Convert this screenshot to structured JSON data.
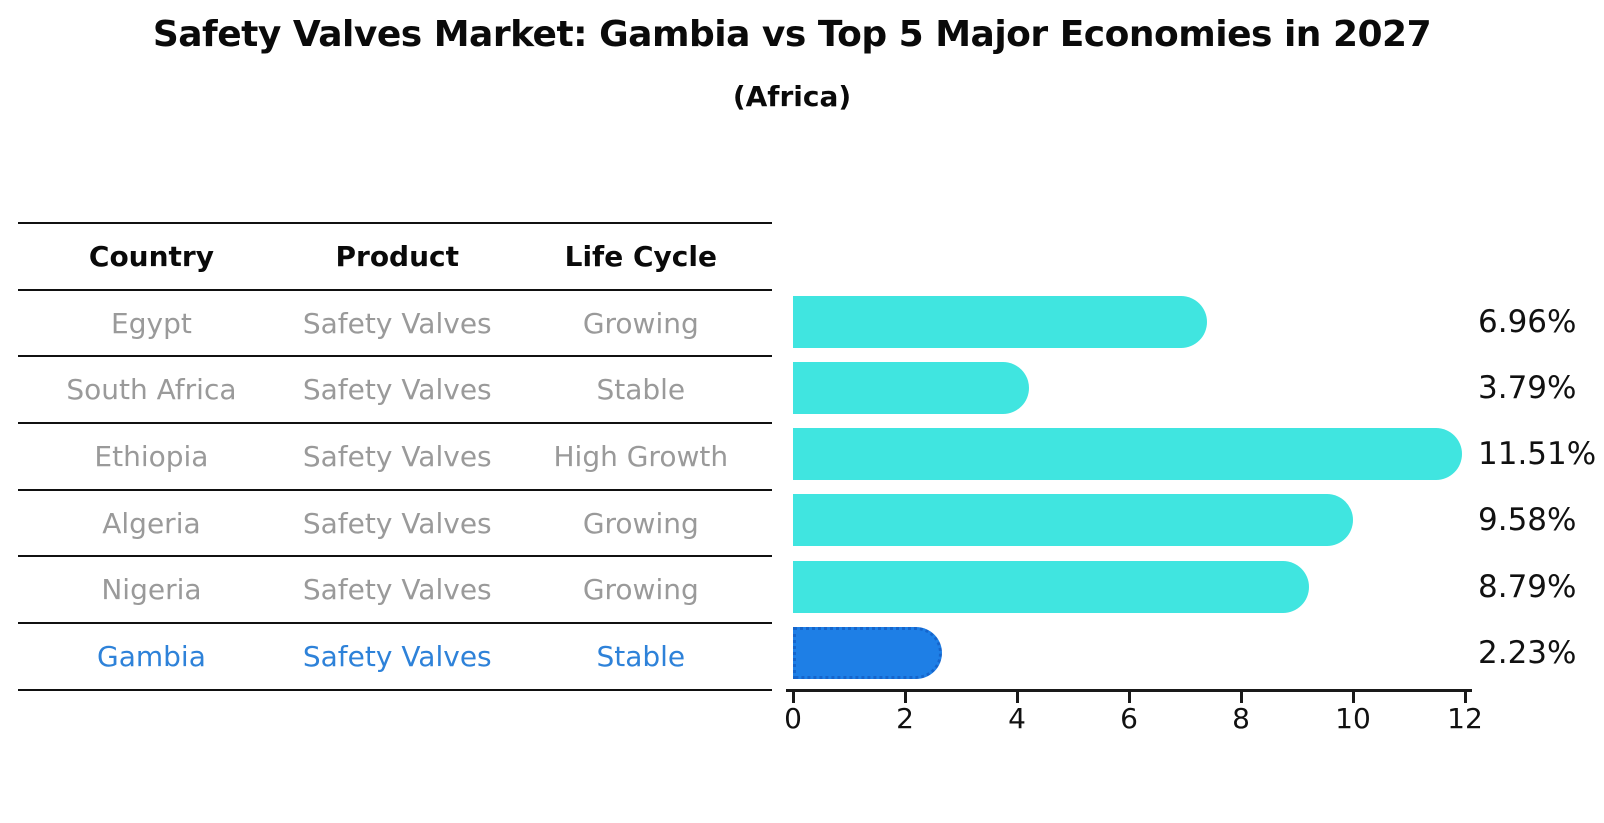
{
  "title": "Safety Valves Market: Gambia vs Top 5 Major Economies in 2027",
  "subtitle": "(Africa)",
  "table": {
    "headers": [
      "Country",
      "Product",
      "Life Cycle"
    ],
    "rows": [
      {
        "country": "Egypt",
        "product": "Safety Valves",
        "life_cycle": "Growing",
        "highlight": false
      },
      {
        "country": "South Africa",
        "product": "Safety Valves",
        "life_cycle": "Stable",
        "highlight": false
      },
      {
        "country": "Ethiopia",
        "product": "Safety Valves",
        "life_cycle": "High Growth",
        "highlight": false
      },
      {
        "country": "Algeria",
        "product": "Safety Valves",
        "life_cycle": "Growing",
        "highlight": false
      },
      {
        "country": "Nigeria",
        "product": "Safety Valves",
        "life_cycle": "Growing",
        "highlight": false
      },
      {
        "country": "Gambia",
        "product": "Safety Valves",
        "life_cycle": "Stable",
        "highlight": true
      }
    ]
  },
  "chart_data": {
    "type": "bar",
    "orientation": "horizontal",
    "title": "Safety Valves Market: Gambia vs Top 5 Major Economies in 2027 (Africa)",
    "categories": [
      "Egypt",
      "South Africa",
      "Ethiopia",
      "Algeria",
      "Nigeria",
      "Gambia"
    ],
    "values": [
      6.96,
      3.79,
      11.51,
      9.58,
      8.79,
      2.23
    ],
    "value_labels": [
      "6.96%",
      "3.79%",
      "11.51%",
      "9.58%",
      "8.79%",
      "2.23%"
    ],
    "xlim": [
      0,
      12
    ],
    "xticks": [
      "0",
      "2",
      "4",
      "6",
      "8",
      "10",
      "12"
    ],
    "grid": "off",
    "legend": "none",
    "bar_color": "#40E5E0",
    "highlight_index": 5,
    "highlight_bar_color": "#1E7FE6",
    "highlight_border_color": "#1565CC",
    "highlight_text_color": "#2E82D9"
  },
  "colors": {
    "background": "#FFFFFF",
    "table_line": "#111111",
    "header_text": "#0A0A0A",
    "cell_text": "#9A9A9A",
    "axis": "#1A1A1A",
    "label_text": "#111111"
  }
}
